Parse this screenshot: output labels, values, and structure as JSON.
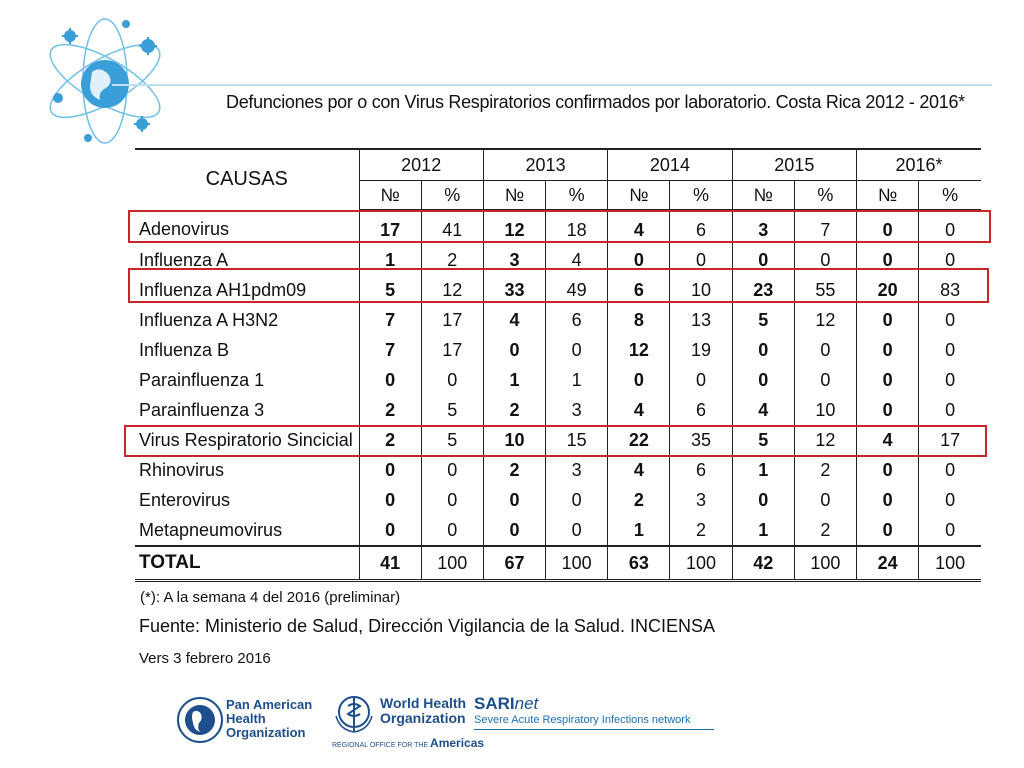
{
  "title": "Defunciones por o con  Virus Respiratorios confirmados por laboratorio. Costa Rica  2012 - 2016*",
  "table": {
    "cause_header": "CAUSAS",
    "years": [
      "2012",
      "2013",
      "2014",
      "2015",
      "2016*"
    ],
    "sub_headers": [
      "№",
      "%"
    ],
    "rows": [
      {
        "cause": "Adenovirus",
        "cells": [
          "17",
          "41",
          "12",
          "18",
          "4",
          "6",
          "3",
          "7",
          "0",
          "0"
        ]
      },
      {
        "cause": "Influenza A",
        "cells": [
          "1",
          "2",
          "3",
          "4",
          "0",
          "0",
          "0",
          "0",
          "0",
          "0"
        ]
      },
      {
        "cause": "Influenza AH1pdm09",
        "cells": [
          "5",
          "12",
          "33",
          "49",
          "6",
          "10",
          "23",
          "55",
          "20",
          "83"
        ]
      },
      {
        "cause": "Influenza A H3N2",
        "cells": [
          "7",
          "17",
          "4",
          "6",
          "8",
          "13",
          "5",
          "12",
          "0",
          "0"
        ]
      },
      {
        "cause": "Influenza B",
        "cells": [
          "7",
          "17",
          "0",
          "0",
          "12",
          "19",
          "0",
          "0",
          "0",
          "0"
        ]
      },
      {
        "cause": "Parainfluenza 1",
        "cells": [
          "0",
          "0",
          "1",
          "1",
          "0",
          "0",
          "0",
          "0",
          "0",
          "0"
        ]
      },
      {
        "cause": "Parainfluenza 3",
        "cells": [
          "2",
          "5",
          "2",
          "3",
          "4",
          "6",
          "4",
          "10",
          "0",
          "0"
        ]
      },
      {
        "cause": "Virus Respiratorio Sincicial",
        "cells": [
          "2",
          "5",
          "10",
          "15",
          "22",
          "35",
          "5",
          "12",
          "4",
          "17"
        ]
      },
      {
        "cause": "Rhinovirus",
        "cells": [
          "0",
          "0",
          "2",
          "3",
          "4",
          "6",
          "1",
          "2",
          "0",
          "0"
        ]
      },
      {
        "cause": "Enterovirus",
        "cells": [
          "0",
          "0",
          "0",
          "0",
          "2",
          "3",
          "0",
          "0",
          "0",
          "0"
        ]
      },
      {
        "cause": "Metapneumovirus",
        "cells": [
          "0",
          "0",
          "0",
          "0",
          "1",
          "2",
          "1",
          "2",
          "0",
          "0"
        ]
      }
    ],
    "total": {
      "cause": "TOTAL",
      "cells": [
        "41",
        "100",
        "67",
        "100",
        "63",
        "100",
        "42",
        "100",
        "24",
        "100"
      ]
    }
  },
  "note": "(*):  A la semana 4 del 2016 (preliminar)",
  "source": "Fuente: Ministerio de Salud, Dirección Vigilancia de la Salud.   INCIENSA",
  "version": "Vers 3 febrero 2016",
  "footer": {
    "paho_lines": [
      "Pan American",
      "Health",
      "Organization"
    ],
    "who_lines": [
      "World Health",
      "Organization"
    ],
    "who_region_prefix": "REGIONAL OFFICE FOR THE",
    "who_region": "Americas",
    "sari_brand": "SARI",
    "sari_suffix": "net",
    "sari_tagline": "Severe Acute Respiratory Infections network"
  },
  "colors": {
    "highlight": "#c8262b",
    "brand_blue": "#1d4f8c",
    "emblem_blue": "#3a9fd8"
  }
}
